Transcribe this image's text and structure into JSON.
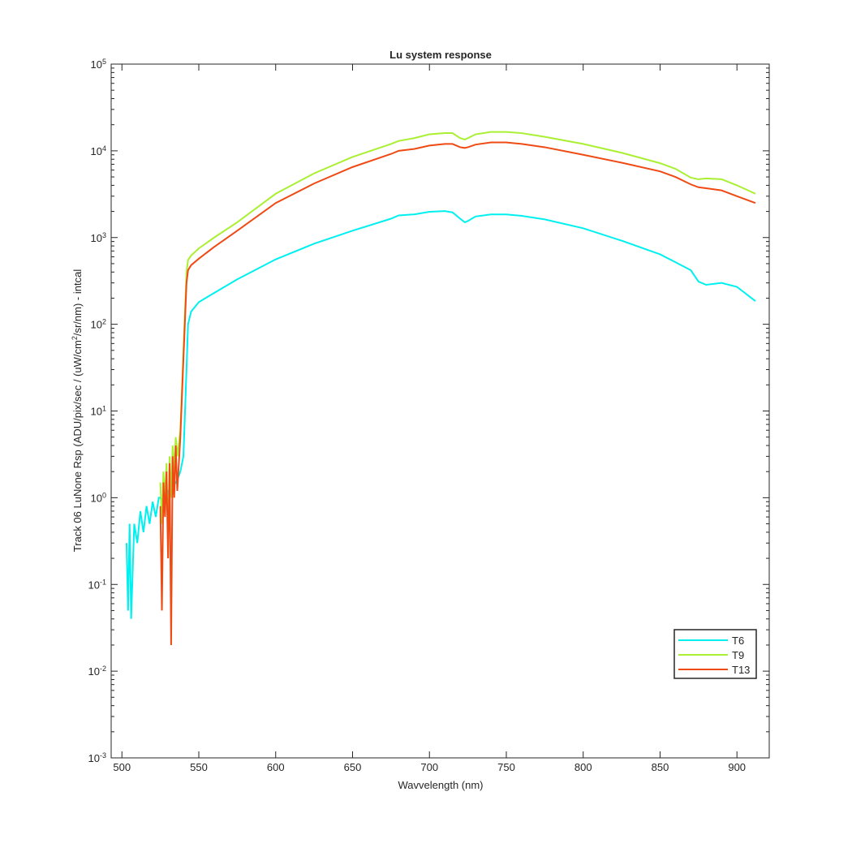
{
  "chart_data": {
    "type": "line",
    "title": "Lu system response",
    "xlabel": "Wavvelength (nm)",
    "ylabel": "Track 06 LuNone Rsp (ADU/pix/sec / (uW/cm^2/sr/nm) - intcal",
    "log_y": true,
    "legend": "southeast",
    "xlim": [
      493,
      921
    ],
    "ylim": [
      0.001,
      100000
    ],
    "xticks": [
      500,
      550,
      600,
      650,
      700,
      750,
      800,
      850,
      900
    ],
    "yticks": [
      {
        "value": 0.001,
        "label": "10^-3"
      },
      {
        "value": 0.01,
        "label": "10^-2"
      },
      {
        "value": 0.1,
        "label": "10^-1"
      },
      {
        "value": 1,
        "label": "10^0"
      },
      {
        "value": 10,
        "label": "10^1"
      },
      {
        "value": 100,
        "label": "10^2"
      },
      {
        "value": 1000,
        "label": "10^3"
      },
      {
        "value": 10000,
        "label": "10^4"
      },
      {
        "value": 100000,
        "label": "10^5"
      }
    ],
    "x": [
      503,
      504,
      505,
      506,
      508,
      510,
      512,
      514,
      516,
      518,
      520,
      522,
      524,
      525,
      526,
      527,
      528,
      529,
      530,
      531,
      532,
      533,
      534,
      535,
      536,
      538,
      540,
      542,
      543,
      545,
      550,
      560,
      575,
      600,
      625,
      650,
      675,
      680,
      690,
      700,
      710,
      715,
      720,
      723,
      725,
      730,
      740,
      750,
      760,
      775,
      800,
      825,
      850,
      860,
      870,
      875,
      880,
      890,
      900,
      912
    ],
    "series": [
      {
        "name": "T6",
        "color": "#00f0f0",
        "values": [
          0.3,
          0.05,
          0.5,
          0.04,
          0.5,
          0.3,
          0.7,
          0.4,
          0.8,
          0.5,
          0.9,
          0.6,
          1.0,
          1.0,
          0.9,
          1.1,
          0.8,
          1.2,
          1.2,
          1.0,
          1.3,
          1.1,
          1.4,
          1.5,
          1.6,
          2.0,
          3,
          30,
          100,
          140,
          180,
          230,
          330,
          560,
          850,
          1200,
          1650,
          1800,
          1850,
          1980,
          2020,
          1950,
          1650,
          1500,
          1550,
          1750,
          1850,
          1850,
          1780,
          1620,
          1280,
          920,
          640,
          520,
          420,
          310,
          285,
          300,
          270,
          185
        ]
      },
      {
        "name": "T9",
        "color": "#aaf032",
        "values": [
          null,
          null,
          null,
          null,
          null,
          null,
          null,
          null,
          null,
          null,
          null,
          null,
          null,
          1.5,
          0.5,
          2,
          1,
          2.5,
          0.3,
          3,
          1,
          4,
          2,
          5,
          3,
          6,
          50,
          400,
          550,
          620,
          750,
          1000,
          1500,
          3200,
          5500,
          8500,
          12000,
          13000,
          14000,
          15500,
          16000,
          16000,
          14000,
          13500,
          14000,
          15500,
          16500,
          16500,
          16000,
          14500,
          12000,
          9500,
          7200,
          6200,
          4900,
          4700,
          4800,
          4700,
          4000,
          3200
        ]
      },
      {
        "name": "T13",
        "color": "#f04a14",
        "values": [
          null,
          null,
          null,
          null,
          null,
          null,
          null,
          null,
          null,
          null,
          null,
          null,
          null,
          0.8,
          0.05,
          1.5,
          0.6,
          2,
          0.2,
          2.5,
          0.02,
          3,
          1,
          4,
          1.2,
          5,
          40,
          300,
          420,
          480,
          570,
          780,
          1200,
          2500,
          4200,
          6500,
          9200,
          10000,
          10500,
          11500,
          12000,
          12000,
          11000,
          10800,
          11000,
          11800,
          12500,
          12500,
          12000,
          11000,
          9000,
          7300,
          5800,
          5000,
          4100,
          3800,
          3700,
          3500,
          3000,
          2500
        ]
      }
    ]
  }
}
